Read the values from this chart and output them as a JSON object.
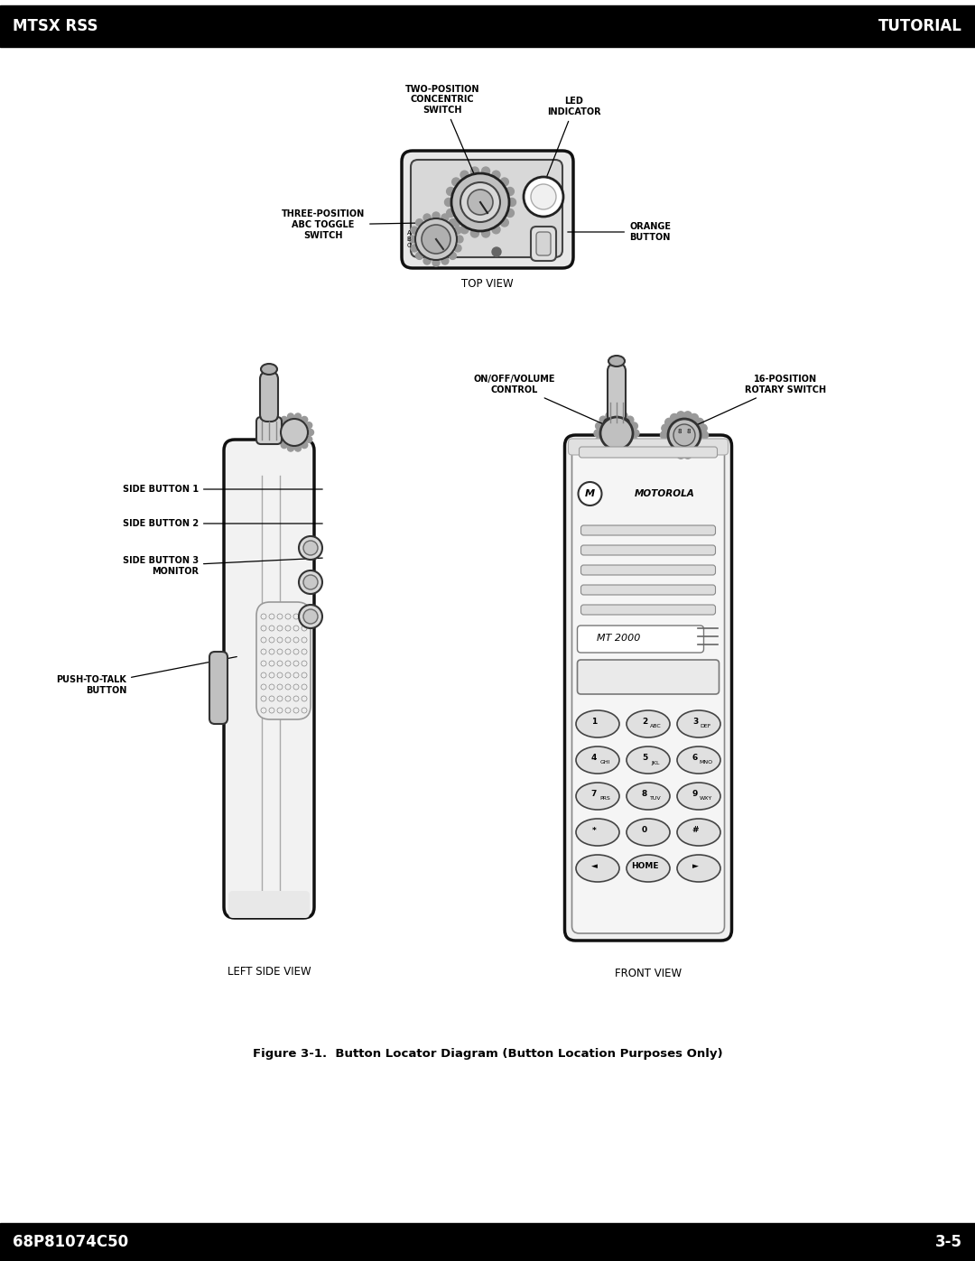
{
  "header_left": "MTSX RSS",
  "header_right": "TUTORIAL",
  "footer_left": "68P81074C50",
  "footer_right": "3-5",
  "header_bg": "#000000",
  "header_text_color": "#ffffff",
  "page_bg": "#ffffff",
  "top_view_label": "TOP VIEW",
  "left_side_label": "LEFT SIDE VIEW",
  "front_label": "FRONT VIEW",
  "figure_caption": "Figure 3-1.  Button Locator Diagram (Button Location Purposes Only)",
  "font_size_header": 12,
  "font_size_annotation": 7,
  "font_size_caption": 9.5,
  "font_size_view_label": 8.5
}
